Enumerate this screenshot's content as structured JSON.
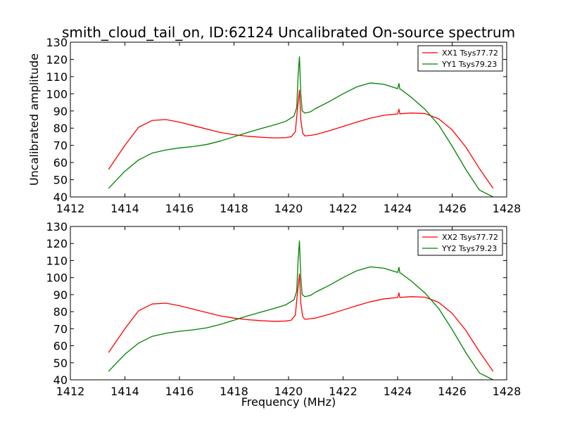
{
  "title": "smith_cloud_tail_on, ID:62124 Uncalibrated On-source spectrum",
  "ylabel": "Uncalibrated amplitude",
  "xlabel": "Frequency (MHz)",
  "colors": {
    "xx": "#ff0000",
    "yy": "#008000"
  },
  "chart_data": [
    {
      "type": "line",
      "xlim": [
        1412,
        1428
      ],
      "ylim": [
        40,
        130
      ],
      "xticks": [
        1412,
        1414,
        1416,
        1418,
        1420,
        1422,
        1424,
        1426,
        1428
      ],
      "yticks": [
        40,
        50,
        60,
        70,
        80,
        90,
        100,
        110,
        120,
        130
      ],
      "legend_position": "top-right",
      "series": [
        {
          "name": "XX1 Tsys77.72",
          "color": "#ff0000",
          "x": [
            1413.4,
            1414.0,
            1414.5,
            1415.0,
            1415.5,
            1416.0,
            1416.5,
            1417.0,
            1417.5,
            1418.0,
            1418.5,
            1419.0,
            1419.5,
            1419.9,
            1420.1,
            1420.25,
            1420.32,
            1420.4,
            1420.45,
            1420.52,
            1420.6,
            1420.8,
            1421.0,
            1421.5,
            1422.0,
            1422.5,
            1423.0,
            1423.5,
            1424.0,
            1424.05,
            1424.08,
            1424.12,
            1424.5,
            1425.0,
            1425.5,
            1426.0,
            1426.5,
            1427.0,
            1427.5
          ],
          "y": [
            56,
            70,
            80.5,
            84.5,
            85,
            83.5,
            81.5,
            79.5,
            77.5,
            76.2,
            75.3,
            74.7,
            74.3,
            74.5,
            75,
            78,
            90,
            102,
            85,
            77,
            75.5,
            75.8,
            76.3,
            78.5,
            81,
            83.5,
            85.8,
            87.5,
            88.3,
            91,
            88.3,
            88.4,
            88.8,
            88.5,
            85.5,
            79,
            69,
            56.5,
            45
          ]
        },
        {
          "name": "YY1 Tsys79.23",
          "color": "#008000",
          "x": [
            1413.4,
            1414.0,
            1414.5,
            1415.0,
            1415.5,
            1416.0,
            1416.5,
            1417.0,
            1417.5,
            1418.0,
            1418.5,
            1419.0,
            1419.5,
            1419.9,
            1420.1,
            1420.2,
            1420.3,
            1420.35,
            1420.4,
            1420.45,
            1420.5,
            1420.6,
            1420.8,
            1421.0,
            1421.5,
            1422.0,
            1422.5,
            1423.0,
            1423.5,
            1424.0,
            1424.05,
            1424.08,
            1424.12,
            1424.5,
            1425.0,
            1425.5,
            1426.0,
            1426.5,
            1427.0,
            1427.5
          ],
          "y": [
            45,
            55,
            61.5,
            65.5,
            67.3,
            68.5,
            69.3,
            70.5,
            72.5,
            75,
            77.5,
            79.8,
            82,
            84,
            86,
            87,
            92,
            110,
            121.5,
            100,
            90,
            88.8,
            89.5,
            91.5,
            95.5,
            100,
            104,
            106.3,
            105.5,
            103,
            106,
            102.8,
            102.5,
            98,
            91,
            82,
            69.5,
            56,
            44,
            40
          ]
        }
      ]
    },
    {
      "type": "line",
      "xlim": [
        1412,
        1428
      ],
      "ylim": [
        40,
        130
      ],
      "xticks": [
        1412,
        1414,
        1416,
        1418,
        1420,
        1422,
        1424,
        1426,
        1428
      ],
      "yticks": [
        40,
        50,
        60,
        70,
        80,
        90,
        100,
        110,
        120,
        130
      ],
      "legend_position": "top-right",
      "series": [
        {
          "name": "XX2 Tsys77.72",
          "color": "#ff0000",
          "x": [
            1413.4,
            1414.0,
            1414.5,
            1415.0,
            1415.5,
            1416.0,
            1416.5,
            1417.0,
            1417.5,
            1418.0,
            1418.5,
            1419.0,
            1419.5,
            1419.9,
            1420.1,
            1420.25,
            1420.32,
            1420.4,
            1420.45,
            1420.52,
            1420.6,
            1420.8,
            1421.0,
            1421.5,
            1422.0,
            1422.5,
            1423.0,
            1423.5,
            1424.0,
            1424.05,
            1424.08,
            1424.12,
            1424.5,
            1425.0,
            1425.5,
            1426.0,
            1426.5,
            1427.0,
            1427.5
          ],
          "y": [
            56,
            70,
            80.5,
            84.5,
            85,
            83.5,
            81.5,
            79.5,
            77.5,
            76.2,
            75.3,
            74.7,
            74.3,
            74.5,
            75,
            78,
            90,
            102,
            85,
            77,
            75.5,
            75.8,
            76.3,
            78.5,
            81,
            83.5,
            85.8,
            87.5,
            88.3,
            91,
            88.3,
            88.4,
            88.8,
            88.5,
            85.5,
            79,
            69,
            56.5,
            45
          ]
        },
        {
          "name": "YY2 Tsys79.23",
          "color": "#008000",
          "x": [
            1413.4,
            1414.0,
            1414.5,
            1415.0,
            1415.5,
            1416.0,
            1416.5,
            1417.0,
            1417.5,
            1418.0,
            1418.5,
            1419.0,
            1419.5,
            1419.9,
            1420.1,
            1420.2,
            1420.3,
            1420.35,
            1420.4,
            1420.45,
            1420.5,
            1420.6,
            1420.8,
            1421.0,
            1421.5,
            1422.0,
            1422.5,
            1423.0,
            1423.5,
            1424.0,
            1424.05,
            1424.08,
            1424.12,
            1424.5,
            1425.0,
            1425.5,
            1426.0,
            1426.5,
            1427.0,
            1427.5
          ],
          "y": [
            45,
            55,
            61.5,
            65.5,
            67.3,
            68.5,
            69.3,
            70.5,
            72.5,
            75,
            77.5,
            79.8,
            82,
            84,
            86,
            87,
            92,
            110,
            121.5,
            100,
            90,
            88.8,
            89.5,
            91.5,
            95.5,
            100,
            104,
            106.3,
            105.5,
            103,
            106,
            102.8,
            102.5,
            98,
            91,
            82,
            69.5,
            56,
            44,
            40
          ]
        }
      ]
    }
  ]
}
